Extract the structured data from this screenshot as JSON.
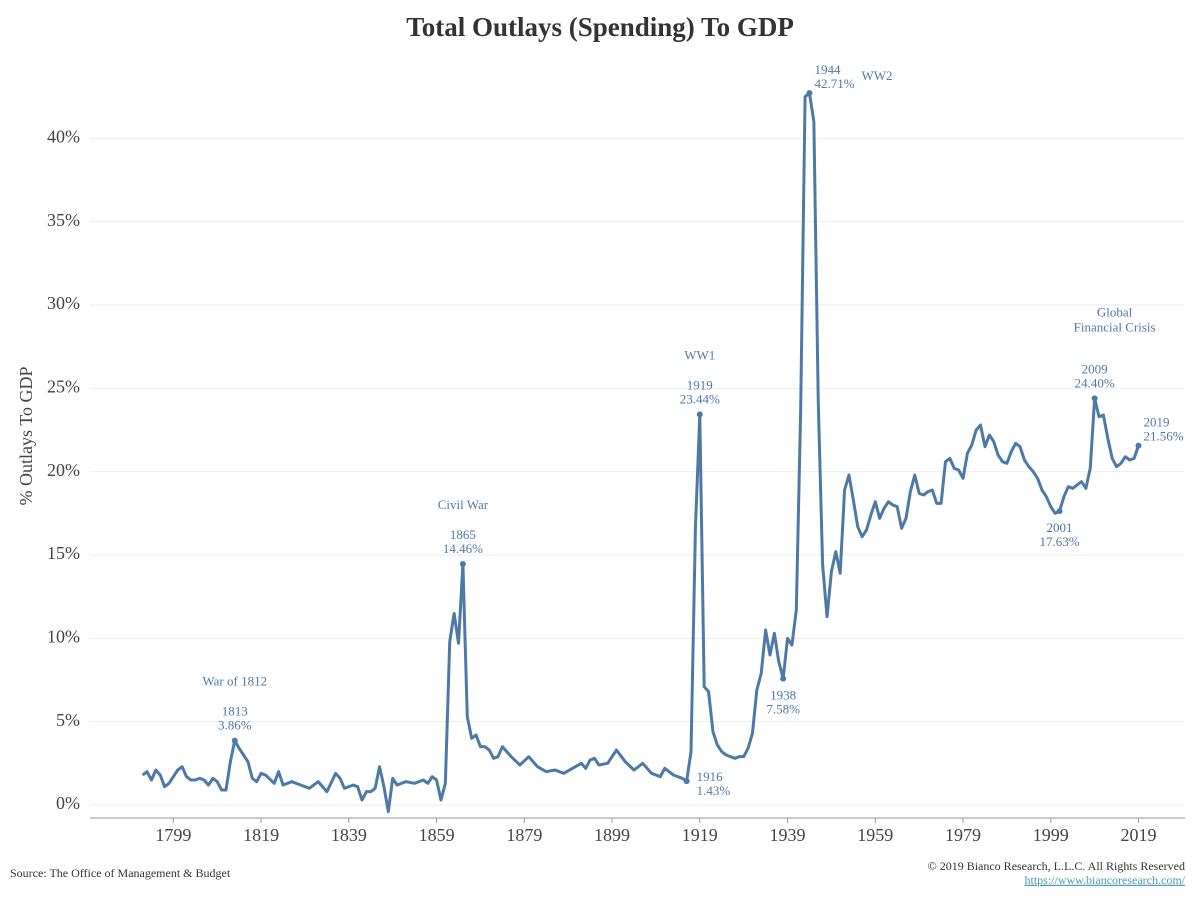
{
  "chart_data": {
    "type": "line",
    "title": "Total Outlays (Spending) To GDP",
    "y_label": "% Outlays To GDP",
    "source": "Source: The Office of Management & Budget",
    "copyright": "© 2019 Bianco Research, L.L.C. All Rights Reserved",
    "url": "https://www.biancoresearch.com/",
    "grid": true,
    "xlim": [
      1780,
      2029.6
    ],
    "ylim": [
      -0.78,
      45
    ],
    "xticks": [
      1799,
      1819,
      1839,
      1859,
      1879,
      1899,
      1919,
      1939,
      1959,
      1979,
      1999,
      2019
    ],
    "yticks": [
      {
        "value": 0,
        "label": "0%"
      },
      {
        "value": 5,
        "label": "5%"
      },
      {
        "value": 10,
        "label": "10%"
      },
      {
        "value": 15,
        "label": "15%"
      },
      {
        "value": 20,
        "label": "20%"
      },
      {
        "value": 25,
        "label": "25%"
      },
      {
        "value": 30,
        "label": "30%"
      },
      {
        "value": 35,
        "label": "35%"
      },
      {
        "value": 40,
        "label": "40%"
      }
    ],
    "x": [
      1792,
      1793,
      1794,
      1795,
      1796,
      1797,
      1798,
      1799,
      1800,
      1801,
      1802,
      1803,
      1804,
      1805,
      1806,
      1807,
      1808,
      1809,
      1810,
      1811,
      1812,
      1813,
      1814,
      1815,
      1816,
      1817,
      1818,
      1819,
      1820,
      1822,
      1823,
      1824,
      1826,
      1828,
      1830,
      1832,
      1834,
      1836,
      1837,
      1838,
      1840,
      1841,
      1842,
      1843,
      1844,
      1845,
      1846,
      1847,
      1848,
      1849,
      1850,
      1852,
      1854,
      1856,
      1857,
      1858,
      1859,
      1860,
      1861,
      1862,
      1863,
      1864,
      1865,
      1866,
      1867,
      1868,
      1869,
      1870,
      1871,
      1872,
      1873,
      1874,
      1876,
      1878,
      1880,
      1882,
      1884,
      1886,
      1888,
      1890,
      1892,
      1893,
      1894,
      1895,
      1896,
      1898,
      1900,
      1902,
      1904,
      1906,
      1908,
      1910,
      1911,
      1913,
      1915,
      1916,
      1917,
      1918,
      1919,
      1920,
      1921,
      1922,
      1923,
      1924,
      1925,
      1926,
      1927,
      1928,
      1929,
      1930,
      1931,
      1932,
      1933,
      1934,
      1935,
      1936,
      1937,
      1938,
      1939,
      1940,
      1941,
      1942,
      1943,
      1944,
      1945,
      1946,
      1947,
      1948,
      1949,
      1950,
      1951,
      1952,
      1953,
      1954,
      1955,
      1956,
      1957,
      1958,
      1959,
      1960,
      1961,
      1962,
      1963,
      1964,
      1965,
      1966,
      1967,
      1968,
      1969,
      1970,
      1971,
      1972,
      1973,
      1974,
      1975,
      1976,
      1977,
      1978,
      1979,
      1980,
      1981,
      1982,
      1983,
      1984,
      1985,
      1986,
      1987,
      1988,
      1989,
      1990,
      1991,
      1992,
      1993,
      1994,
      1995,
      1996,
      1997,
      1998,
      1999,
      2000,
      2001,
      2002,
      2003,
      2004,
      2005,
      2006,
      2007,
      2008,
      2009,
      2010,
      2011,
      2012,
      2013,
      2014,
      2015,
      2016,
      2017,
      2018,
      2019
    ],
    "series": [
      {
        "name": "Total Outlays To GDP",
        "color": "#4e79a7",
        "values": [
          1.8,
          2.0,
          1.5,
          2.1,
          1.8,
          1.1,
          1.3,
          1.7,
          2.1,
          2.3,
          1.7,
          1.5,
          1.5,
          1.6,
          1.5,
          1.2,
          1.6,
          1.4,
          0.9,
          0.9,
          2.6,
          3.86,
          3.4,
          3.0,
          2.6,
          1.6,
          1.4,
          1.9,
          1.8,
          1.3,
          2.0,
          1.2,
          1.4,
          1.2,
          1.0,
          1.4,
          0.8,
          1.9,
          1.6,
          1.0,
          1.2,
          1.1,
          0.3,
          0.8,
          0.8,
          1.0,
          2.3,
          1.1,
          -0.4,
          1.6,
          1.2,
          1.4,
          1.3,
          1.5,
          1.3,
          1.7,
          1.5,
          0.3,
          1.3,
          9.8,
          11.5,
          9.7,
          14.46,
          5.3,
          4.0,
          4.2,
          3.5,
          3.5,
          3.3,
          2.8,
          2.9,
          3.5,
          2.9,
          2.4,
          2.9,
          2.3,
          2.0,
          2.1,
          1.9,
          2.2,
          2.5,
          2.2,
          2.7,
          2.8,
          2.4,
          2.5,
          3.3,
          2.6,
          2.1,
          2.5,
          1.9,
          1.7,
          2.2,
          1.8,
          1.6,
          1.43,
          3.2,
          16.6,
          23.44,
          7.1,
          6.8,
          4.4,
          3.6,
          3.2,
          3.0,
          2.9,
          2.8,
          2.9,
          2.9,
          3.4,
          4.3,
          6.9,
          7.9,
          10.5,
          9.0,
          10.3,
          8.6,
          7.58,
          10.0,
          9.6,
          11.7,
          23.8,
          42.5,
          42.71,
          41.0,
          24.2,
          14.4,
          11.3,
          14.0,
          15.2,
          13.9,
          18.9,
          19.8,
          18.3,
          16.7,
          16.1,
          16.5,
          17.4,
          18.2,
          17.2,
          17.8,
          18.2,
          18.0,
          17.9,
          16.6,
          17.2,
          18.8,
          19.8,
          18.7,
          18.6,
          18.8,
          18.9,
          18.1,
          18.1,
          20.6,
          20.8,
          20.2,
          20.1,
          19.6,
          21.1,
          21.6,
          22.5,
          22.8,
          21.5,
          22.2,
          21.8,
          21.0,
          20.6,
          20.5,
          21.2,
          21.7,
          21.5,
          20.7,
          20.3,
          20.0,
          19.6,
          18.9,
          18.5,
          17.9,
          17.5,
          17.63,
          18.5,
          19.1,
          19.0,
          19.2,
          19.4,
          19.0,
          20.2,
          24.4,
          23.3,
          23.4,
          22.0,
          20.8,
          20.3,
          20.5,
          20.9,
          20.7,
          20.8,
          21.56
        ]
      }
    ],
    "point_labels": [
      {
        "x": 1813,
        "label": "1813",
        "value_label": "3.86%",
        "event": [
          "War of 1812"
        ],
        "position": "above"
      },
      {
        "x": 1865,
        "label": "1865",
        "value_label": "14.46%",
        "event": [
          "Civil War"
        ],
        "position": "above"
      },
      {
        "x": 1916,
        "label": "1916",
        "value_label": "1.43%",
        "position": "below-right"
      },
      {
        "x": 1919,
        "label": "1919",
        "value_label": "23.44%",
        "event": [
          "WW1"
        ],
        "position": "above"
      },
      {
        "x": 1938,
        "label": "1938",
        "value_label": "7.58%",
        "position": "below"
      },
      {
        "x": 1944,
        "label": "1944",
        "value_label": "42.71%",
        "event": [
          "WW2"
        ],
        "position": "above-right"
      },
      {
        "x": 2001,
        "label": "2001",
        "value_label": "17.63%",
        "position": "below"
      },
      {
        "x": 2009,
        "label": "2009",
        "value_label": "24.40%",
        "event": [
          "Global",
          "Financial Crisis"
        ],
        "position": "above"
      },
      {
        "x": 2019,
        "label": "2019",
        "value_label": "21.56%",
        "position": "above-right"
      }
    ]
  }
}
